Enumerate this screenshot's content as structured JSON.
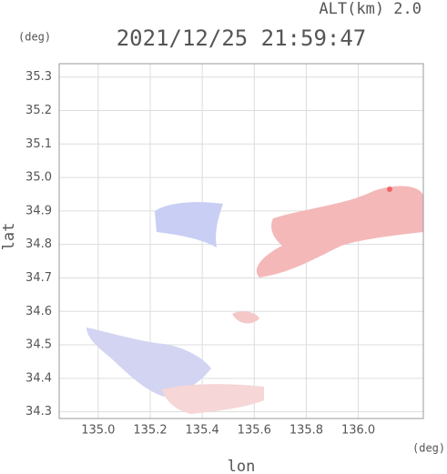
{
  "chart_data": {
    "type": "map",
    "title": "2021/12/25 21:59:47",
    "subtitle": "ALT(km) 2.0",
    "x_label": "lon",
    "y_label": "lat",
    "x_unit": "(deg)",
    "y_unit": "(deg)",
    "xlim": [
      134.85,
      136.25
    ],
    "ylim": [
      34.28,
      35.34
    ],
    "xticks": [
      {
        "value": 135.0,
        "label": "135.0"
      },
      135.2,
      135.4,
      135.6,
      135.8,
      {
        "value": 136.0,
        "label": "136.0"
      }
    ],
    "yticks": [
      34.3,
      34.4,
      34.5,
      34.6,
      34.7,
      34.8,
      34.9,
      {
        "value": 35.0,
        "label": "35.0"
      },
      35.1,
      35.2,
      35.3
    ],
    "grid": true
  }
}
